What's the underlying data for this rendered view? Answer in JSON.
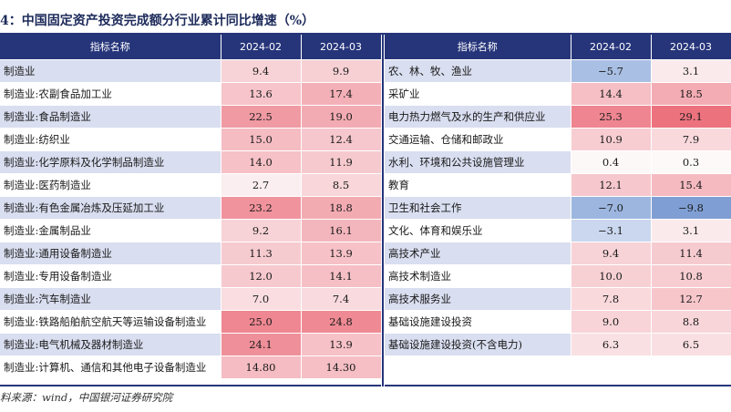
{
  "title": "4：中国固定资产投资完成额分行业累计同比增速（%）",
  "source": "料来源：wind，中国银河证券研究院",
  "headers": {
    "name": "指标名称",
    "col1": "2024-02",
    "col2": "2024-03"
  },
  "left_rows": [
    {
      "name": "制造业",
      "v1": "9.4",
      "v2": "9.9",
      "c1": "#f7d3d7",
      "c2": "#f7d0d4"
    },
    {
      "name": "制造业:农副食品加工业",
      "v1": "13.6",
      "v2": "17.4",
      "c1": "#f6c4ca",
      "c2": "#f3b0b7"
    },
    {
      "name": "制造业:食品制造业",
      "v1": "22.5",
      "v2": "19.0",
      "c1": "#f09aa3",
      "c2": "#f2abb2"
    },
    {
      "name": "制造业:纺织业",
      "v1": "15.0",
      "v2": "12.4",
      "c1": "#f5bcc2",
      "c2": "#f6c7cc"
    },
    {
      "name": "制造业:化学原料及化学制品制造业",
      "v1": "14.0",
      "v2": "11.9",
      "c1": "#f6c1c7",
      "c2": "#f6c9ce"
    },
    {
      "name": "制造业:医药制造业",
      "v1": "2.7",
      "v2": "8.5",
      "c1": "#fbeef0",
      "c2": "#f8d6da"
    },
    {
      "name": "制造业:有色金属冶炼及压延加工业",
      "v1": "23.2",
      "v2": "18.8",
      "c1": "#f0939d",
      "c2": "#f3abb2"
    },
    {
      "name": "制造业:金属制品业",
      "v1": "9.2",
      "v2": "16.1",
      "c1": "#f7d3d7",
      "c2": "#f4b6bd"
    },
    {
      "name": "制造业:通用设备制造业",
      "v1": "11.3",
      "v2": "13.9",
      "c1": "#f6cbd0",
      "c2": "#f6c1c7"
    },
    {
      "name": "制造业:专用设备制造业",
      "v1": "12.0",
      "v2": "14.1",
      "c1": "#f6c9ce",
      "c2": "#f5bfc5"
    },
    {
      "name": "制造业:汽车制造业",
      "v1": "7.0",
      "v2": "7.4",
      "c1": "#f9dde0",
      "c2": "#f9dade"
    },
    {
      "name": "制造业:铁路船舶航空航天等运输设备制造业",
      "v1": "25.0",
      "v2": "24.8",
      "c1": "#ee8791",
      "c2": "#ef8a94"
    },
    {
      "name": "制造业:电气机械及器材制造业",
      "v1": "24.1",
      "v2": "13.9",
      "c1": "#ef8f99",
      "c2": "#f6c1c7"
    },
    {
      "name": "制造业:计算机、通信和其他电子设备制造业",
      "v1": "14.80",
      "v2": "14.30",
      "c1": "#f5bdc3",
      "c2": "#f5bfc5"
    }
  ],
  "right_rows": [
    {
      "name": "农、林、牧、渔业",
      "v1": "−5.7",
      "v2": "3.1",
      "c1": "#a9bfe3",
      "c2": "#fbeaec"
    },
    {
      "name": "采矿业",
      "v1": "14.4",
      "v2": "18.5",
      "c1": "#f5bfc5",
      "c2": "#f3acb3"
    },
    {
      "name": "电力热力燃气及水的生产和供应业",
      "v1": "25.3",
      "v2": "29.1",
      "c1": "#ee8590",
      "c2": "#ec727e"
    },
    {
      "name": "交通运输、仓储和邮政业",
      "v1": "10.9",
      "v2": "7.9",
      "c1": "#f7cdd1",
      "c2": "#f9d9dc"
    },
    {
      "name": "水利、环境和公共设施管理业",
      "v1": "0.4",
      "v2": "0.3",
      "c1": "#fdf8f8",
      "c2": "#fdf9f9"
    },
    {
      "name": "教育",
      "v1": "12.1",
      "v2": "15.4",
      "c1": "#f6c8cd",
      "c2": "#f5bac0"
    },
    {
      "name": "卫生和社会工作",
      "v1": "−7.0",
      "v2": "−9.8",
      "c1": "#9cb6df",
      "c2": "#7f9fd4"
    },
    {
      "name": "文化、体育和娱乐业",
      "v1": "−3.1",
      "v2": "3.1",
      "c1": "#cad7ee",
      "c2": "#fbeaec"
    },
    {
      "name": "高技术产业",
      "v1": "9.4",
      "v2": "11.4",
      "c1": "#f7d3d7",
      "c2": "#f6cbd0"
    },
    {
      "name": "高技术制造业",
      "v1": "10.0",
      "v2": "10.8",
      "c1": "#f7d0d4",
      "c2": "#f7cdd1"
    },
    {
      "name": "高技术服务业",
      "v1": "7.8",
      "v2": "12.7",
      "c1": "#f9d9dc",
      "c2": "#f6c6cb"
    },
    {
      "name": "基础设施建设投资",
      "v1": "9.0",
      "v2": "8.8",
      "c1": "#f8d4d8",
      "c2": "#f8d5d9"
    },
    {
      "name": "基础设施建设投资(不含电力)",
      "v1": "6.3",
      "v2": "6.5",
      "c1": "#f9e0e3",
      "c2": "#f9dfe2"
    },
    {
      "name": "",
      "v1": "",
      "v2": "",
      "c1": "",
      "c2": ""
    }
  ]
}
